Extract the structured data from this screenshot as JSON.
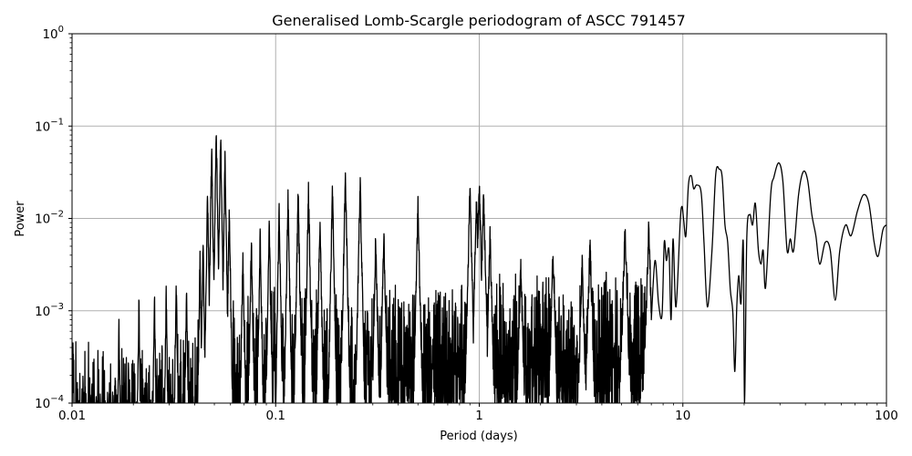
{
  "chart_data": {
    "type": "line",
    "title": "Generalised Lomb-Scargle periodogram of ASCC 791457",
    "xlabel": "Period (days)",
    "ylabel": "Power",
    "xscale": "log",
    "yscale": "log",
    "xlim": [
      0.01,
      100
    ],
    "ylim": [
      0.0001,
      1
    ],
    "grid": true,
    "legend": null,
    "x_ticks": [
      {
        "value": 0.01,
        "label": "0.01"
      },
      {
        "value": 0.1,
        "label": "0.1"
      },
      {
        "value": 1,
        "label": "1"
      },
      {
        "value": 10,
        "label": "10"
      },
      {
        "value": 100,
        "label": "100"
      }
    ],
    "y_ticks": [
      {
        "value": 0.0001,
        "base": "10",
        "exp": "−4"
      },
      {
        "value": 0.001,
        "base": "10",
        "exp": "−3"
      },
      {
        "value": 0.01,
        "base": "10",
        "exp": "−2"
      },
      {
        "value": 0.1,
        "base": "10",
        "exp": "−1"
      },
      {
        "value": 1,
        "base": "10",
        "exp": "0"
      }
    ],
    "line_color": "#000000",
    "grid_color": "#b0b0b0",
    "noise_envelope": [
      {
        "x": 0.01,
        "y": 0.0004
      },
      {
        "x": 0.02,
        "y": 0.0003
      },
      {
        "x": 0.03,
        "y": 0.0004
      },
      {
        "x": 0.045,
        "y": 0.0008
      },
      {
        "x": 0.1,
        "y": 0.0015
      },
      {
        "x": 0.3,
        "y": 0.0015
      },
      {
        "x": 0.5,
        "y": 0.0015
      },
      {
        "x": 1,
        "y": 0.002
      },
      {
        "x": 3,
        "y": 0.0018
      },
      {
        "x": 7,
        "y": 0.002
      }
    ],
    "peaks": [
      {
        "x": 0.0101,
        "y": 0.00055
      },
      {
        "x": 0.0128,
        "y": 0.00042
      },
      {
        "x": 0.017,
        "y": 0.00095
      },
      {
        "x": 0.0213,
        "y": 0.0016
      },
      {
        "x": 0.0254,
        "y": 0.0018
      },
      {
        "x": 0.029,
        "y": 0.0019
      },
      {
        "x": 0.0325,
        "y": 0.0024
      },
      {
        "x": 0.0365,
        "y": 0.0023
      },
      {
        "x": 0.0425,
        "y": 0.0048
      },
      {
        "x": 0.044,
        "y": 0.0075
      },
      {
        "x": 0.0463,
        "y": 0.026
      },
      {
        "x": 0.0485,
        "y": 0.078
      },
      {
        "x": 0.0511,
        "y": 0.112
      },
      {
        "x": 0.0537,
        "y": 0.1
      },
      {
        "x": 0.0564,
        "y": 0.055
      },
      {
        "x": 0.0592,
        "y": 0.017
      },
      {
        "x": 0.069,
        "y": 0.0055
      },
      {
        "x": 0.076,
        "y": 0.0075
      },
      {
        "x": 0.084,
        "y": 0.009
      },
      {
        "x": 0.093,
        "y": 0.0115
      },
      {
        "x": 0.104,
        "y": 0.0155
      },
      {
        "x": 0.115,
        "y": 0.021
      },
      {
        "x": 0.129,
        "y": 0.024
      },
      {
        "x": 0.145,
        "y": 0.028
      },
      {
        "x": 0.165,
        "y": 0.013
      },
      {
        "x": 0.19,
        "y": 0.026
      },
      {
        "x": 0.22,
        "y": 0.038
      },
      {
        "x": 0.26,
        "y": 0.033
      },
      {
        "x": 0.31,
        "y": 0.0085
      },
      {
        "x": 0.34,
        "y": 0.0095
      },
      {
        "x": 0.5,
        "y": 0.019
      },
      {
        "x": 0.97,
        "y": 0.022
      },
      {
        "x": 0.9,
        "y": 0.027
      },
      {
        "x": 1.0,
        "y": 0.032
      },
      {
        "x": 1.05,
        "y": 0.024
      },
      {
        "x": 1.13,
        "y": 0.0085
      },
      {
        "x": 1.6,
        "y": 0.0045
      },
      {
        "x": 2.3,
        "y": 0.0055
      },
      {
        "x": 3.2,
        "y": 0.0045
      },
      {
        "x": 3.5,
        "y": 0.0075
      },
      {
        "x": 5.2,
        "y": 0.0105
      },
      {
        "x": 6.8,
        "y": 0.0105
      },
      {
        "x": 9.0,
        "y": 0.0095
      }
    ],
    "smooth_curve": [
      {
        "x": 7.0,
        "y": 0.0008
      },
      {
        "x": 7.3,
        "y": 0.0035
      },
      {
        "x": 7.6,
        "y": 0.0012
      },
      {
        "x": 7.9,
        "y": 0.0009
      },
      {
        "x": 8.1,
        "y": 0.0055
      },
      {
        "x": 8.3,
        "y": 0.0035
      },
      {
        "x": 8.55,
        "y": 0.0045
      },
      {
        "x": 8.75,
        "y": 0.0008
      },
      {
        "x": 8.95,
        "y": 0.006
      },
      {
        "x": 9.25,
        "y": 0.0011
      },
      {
        "x": 9.7,
        "y": 0.009
      },
      {
        "x": 9.9,
        "y": 0.0135
      },
      {
        "x": 10.1,
        "y": 0.0095
      },
      {
        "x": 10.35,
        "y": 0.0065
      },
      {
        "x": 10.65,
        "y": 0.023
      },
      {
        "x": 11.0,
        "y": 0.029
      },
      {
        "x": 11.3,
        "y": 0.021
      },
      {
        "x": 11.7,
        "y": 0.023
      },
      {
        "x": 12.3,
        "y": 0.019
      },
      {
        "x": 12.7,
        "y": 0.0055
      },
      {
        "x": 13.2,
        "y": 0.0011
      },
      {
        "x": 13.9,
        "y": 0.0045
      },
      {
        "x": 14.5,
        "y": 0.03
      },
      {
        "x": 15.1,
        "y": 0.034
      },
      {
        "x": 15.6,
        "y": 0.028
      },
      {
        "x": 16.1,
        "y": 0.0085
      },
      {
        "x": 16.6,
        "y": 0.0055
      },
      {
        "x": 17.1,
        "y": 0.0017
      },
      {
        "x": 17.6,
        "y": 0.00095
      },
      {
        "x": 18.0,
        "y": 0.00022
      },
      {
        "x": 18.4,
        "y": 0.0011
      },
      {
        "x": 18.8,
        "y": 0.0024
      },
      {
        "x": 19.3,
        "y": 0.0012
      },
      {
        "x": 19.8,
        "y": 0.0055
      },
      {
        "x": 20.1,
        "y": 0.0001
      },
      {
        "x": 20.6,
        "y": 0.006
      },
      {
        "x": 21.3,
        "y": 0.011
      },
      {
        "x": 22.0,
        "y": 0.0085
      },
      {
        "x": 22.7,
        "y": 0.0145
      },
      {
        "x": 23.5,
        "y": 0.0045
      },
      {
        "x": 24.2,
        "y": 0.0032
      },
      {
        "x": 24.8,
        "y": 0.0045
      },
      {
        "x": 25.5,
        "y": 0.0018
      },
      {
        "x": 27.0,
        "y": 0.018
      },
      {
        "x": 28.0,
        "y": 0.028
      },
      {
        "x": 29.6,
        "y": 0.04
      },
      {
        "x": 31.0,
        "y": 0.025
      },
      {
        "x": 32.5,
        "y": 0.0045
      },
      {
        "x": 33.7,
        "y": 0.006
      },
      {
        "x": 35.0,
        "y": 0.0045
      },
      {
        "x": 37.0,
        "y": 0.018
      },
      {
        "x": 39.0,
        "y": 0.032
      },
      {
        "x": 41.0,
        "y": 0.026
      },
      {
        "x": 43.0,
        "y": 0.011
      },
      {
        "x": 45.0,
        "y": 0.0065
      },
      {
        "x": 47.0,
        "y": 0.0032
      },
      {
        "x": 50.0,
        "y": 0.0055
      },
      {
        "x": 53.0,
        "y": 0.0045
      },
      {
        "x": 56.0,
        "y": 0.0013
      },
      {
        "x": 59.0,
        "y": 0.0045
      },
      {
        "x": 63.0,
        "y": 0.0085
      },
      {
        "x": 67.0,
        "y": 0.0065
      },
      {
        "x": 72.0,
        "y": 0.012
      },
      {
        "x": 77.0,
        "y": 0.018
      },
      {
        "x": 82.0,
        "y": 0.0145
      },
      {
        "x": 87.0,
        "y": 0.0055
      },
      {
        "x": 91.0,
        "y": 0.0039
      },
      {
        "x": 96.0,
        "y": 0.0075
      },
      {
        "x": 100.0,
        "y": 0.0085
      }
    ]
  }
}
